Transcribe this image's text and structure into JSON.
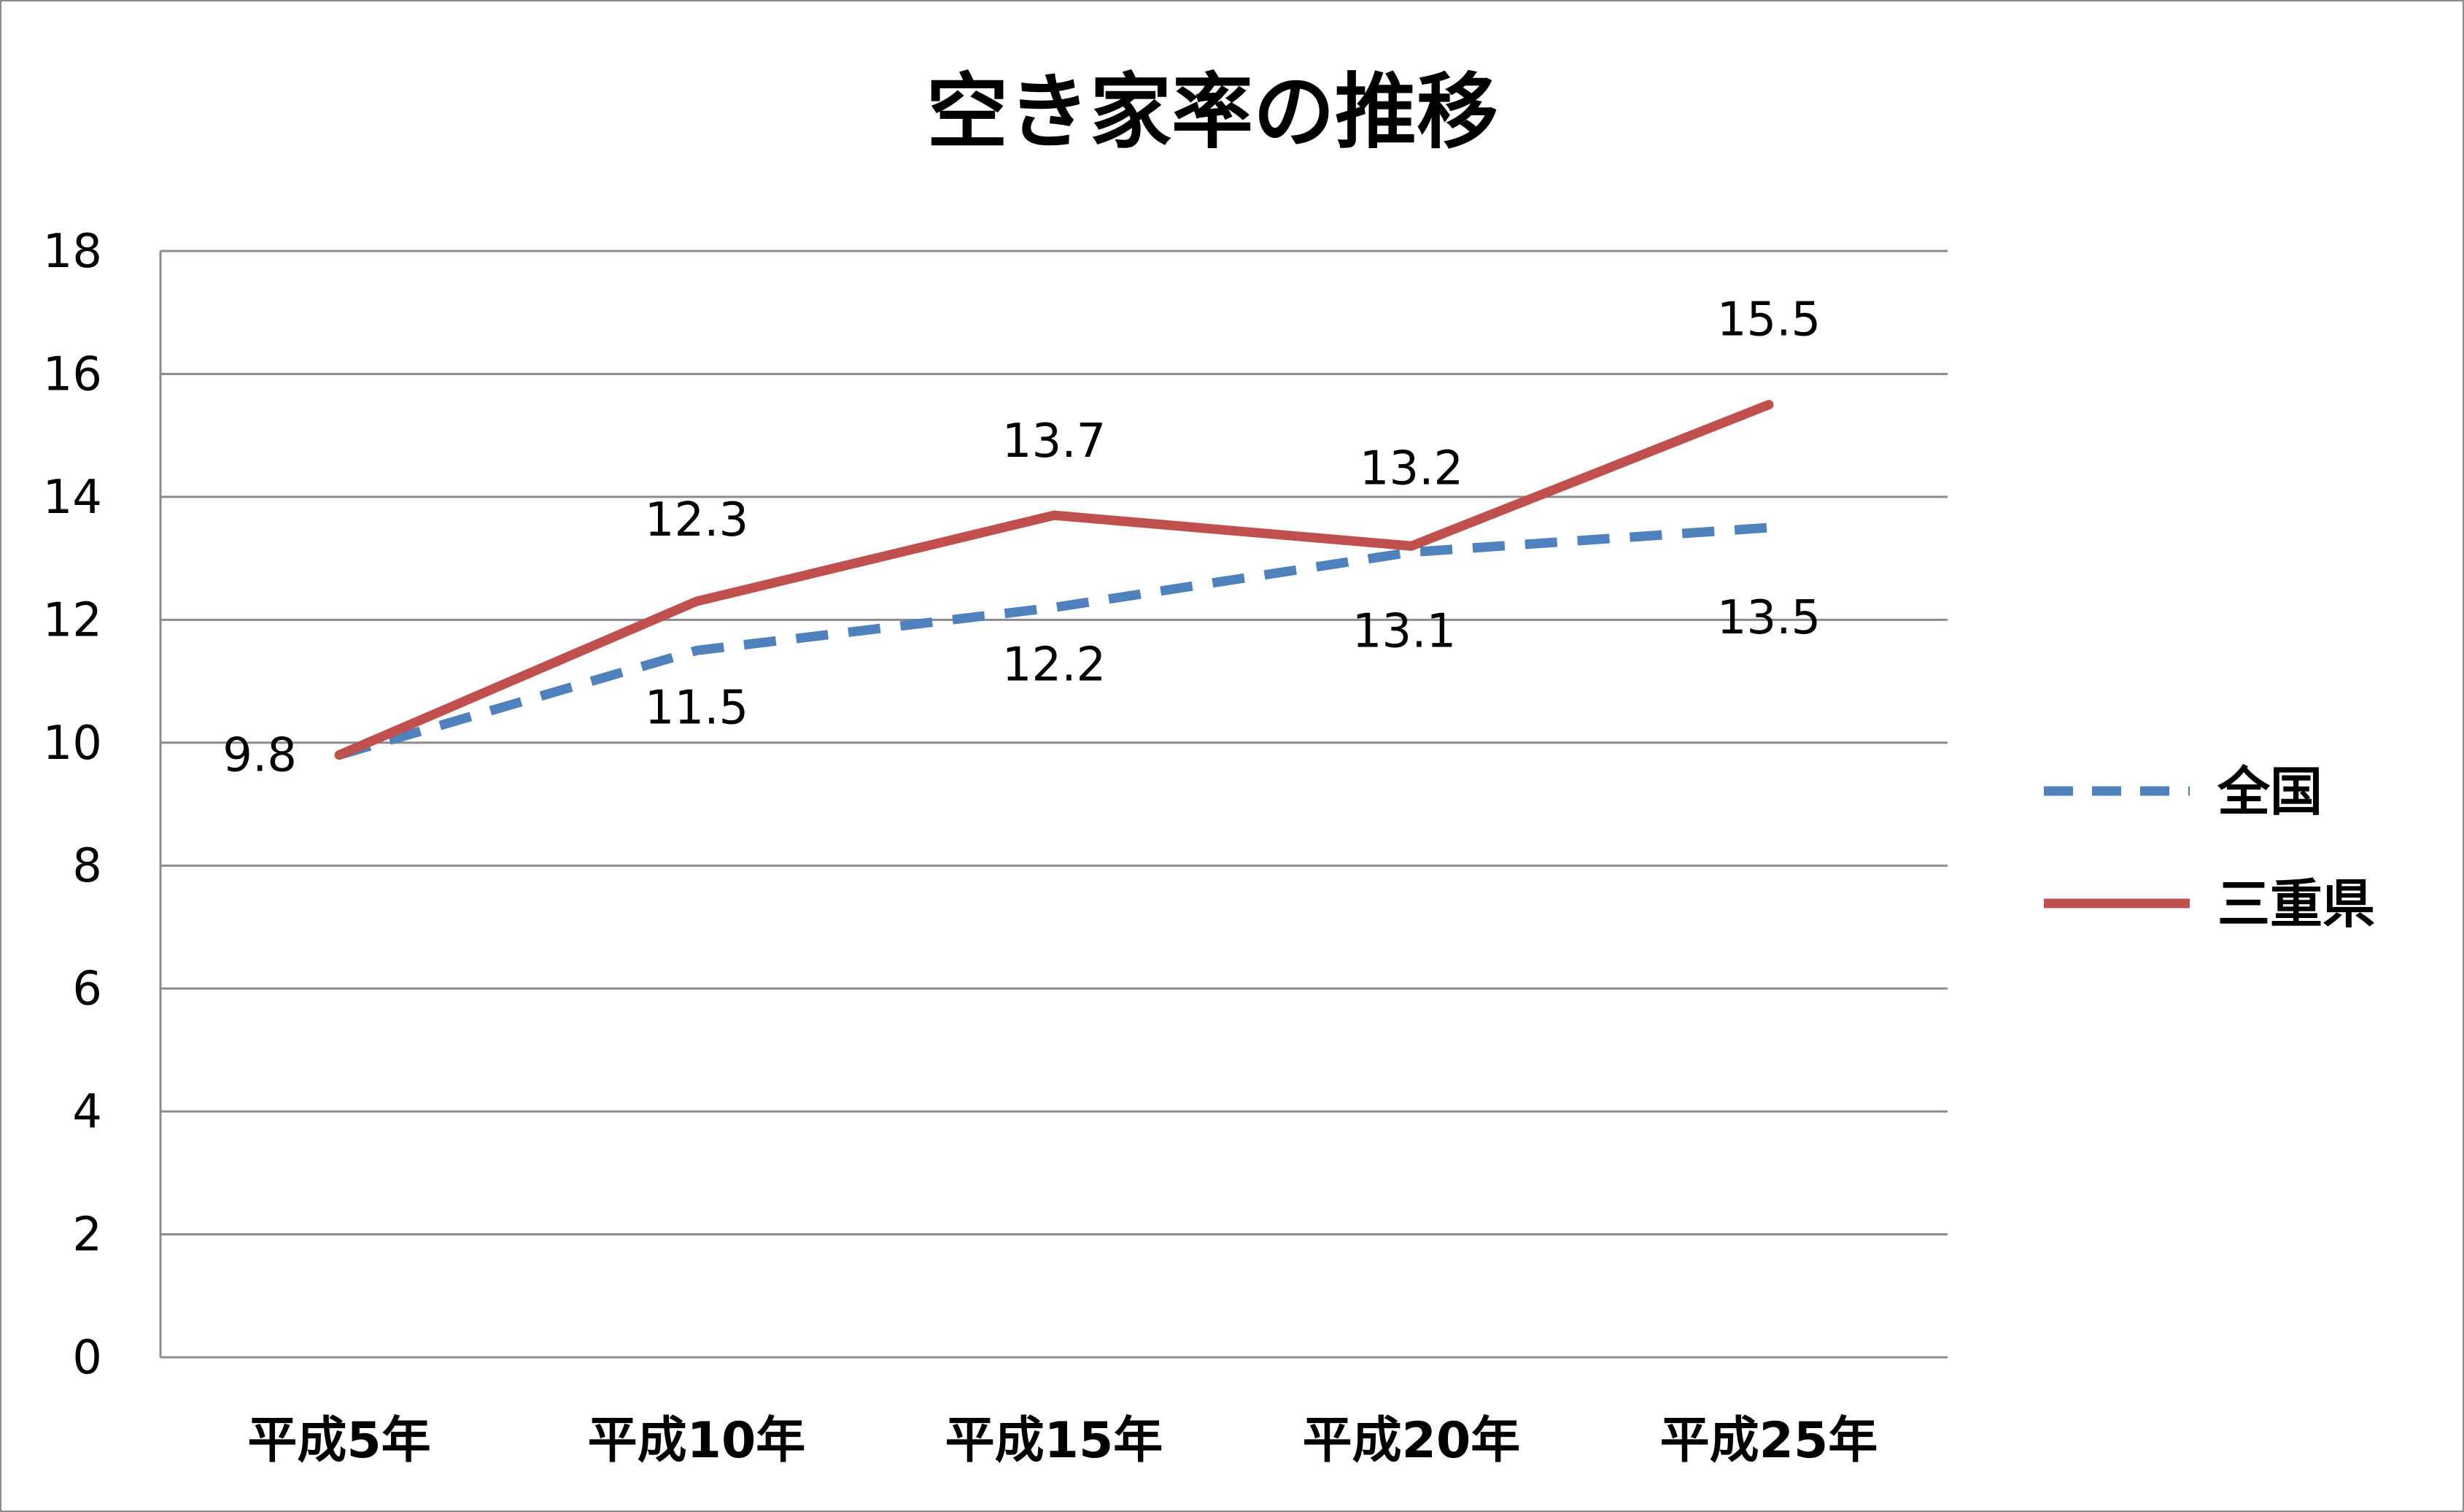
{
  "chart_data": {
    "type": "line",
    "title": "空き家率の推移",
    "xlabel": "",
    "ylabel": "",
    "categories": [
      "平成5年",
      "平成10年",
      "平成15年",
      "平成20年",
      "平成25年"
    ],
    "ylim": [
      0,
      18
    ],
    "yticks": [
      "0",
      "2",
      "4",
      "6",
      "8",
      "10",
      "12",
      "14",
      "16",
      "18"
    ],
    "grid": "horizontal",
    "legend_position": "right",
    "series": [
      {
        "name": "全国",
        "values": [
          9.8,
          11.5,
          12.2,
          13.1,
          13.5
        ],
        "labels": [
          "9.8",
          "11.5",
          "12.2",
          "13.1",
          "13.5"
        ],
        "color": "#4F81BD",
        "style": "dashed"
      },
      {
        "name": "三重県",
        "values": [
          9.8,
          12.3,
          13.7,
          13.2,
          15.5
        ],
        "labels": [
          "",
          "12.3",
          "13.7",
          "13.2",
          "15.5"
        ],
        "color": "#C0504D",
        "style": "solid"
      }
    ]
  }
}
